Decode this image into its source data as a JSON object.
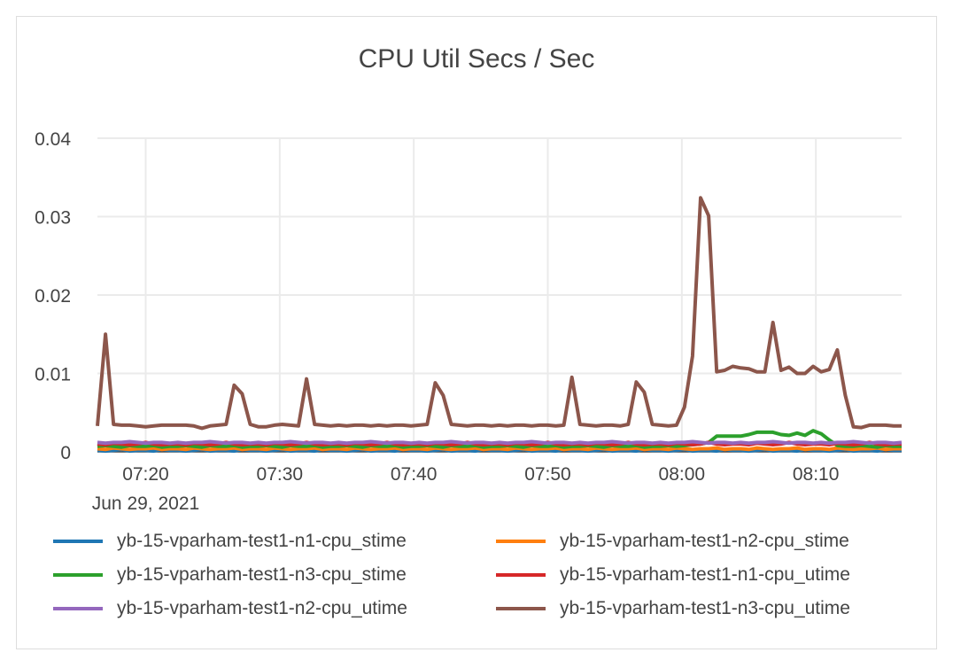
{
  "chart_data": {
    "type": "line",
    "title": "CPU Util Secs / Sec",
    "xlabel": "",
    "ylabel": "",
    "ylim": [
      0,
      0.04
    ],
    "yticks": [
      "0",
      "0.01",
      "0.02",
      "0.03",
      "0.04"
    ],
    "xlim": [
      "07:16:24",
      "08:16:24"
    ],
    "xticks": [
      {
        "t": "07:20",
        "label": "07:20",
        "sub": "Jun 29, 2021"
      },
      {
        "t": "07:30",
        "label": "07:30",
        "sub": ""
      },
      {
        "t": "07:40",
        "label": "07:40",
        "sub": ""
      },
      {
        "t": "07:50",
        "label": "07:50",
        "sub": ""
      },
      {
        "t": "08:00",
        "label": "08:00",
        "sub": ""
      },
      {
        "t": "08:10",
        "label": "08:10",
        "sub": ""
      }
    ],
    "grid": true,
    "legend_placement": "bottom-center overlapping plot",
    "x": [
      "07:16:24",
      "07:17:00",
      "07:17:36",
      "07:18:12",
      "07:18:48",
      "07:19:24",
      "07:20:00",
      "07:20:36",
      "07:21:12",
      "07:21:48",
      "07:22:24",
      "07:23:00",
      "07:23:36",
      "07:24:12",
      "07:24:48",
      "07:25:24",
      "07:26:00",
      "07:26:36",
      "07:27:12",
      "07:27:48",
      "07:28:24",
      "07:29:00",
      "07:29:36",
      "07:30:12",
      "07:30:48",
      "07:31:24",
      "07:32:00",
      "07:32:36",
      "07:33:12",
      "07:33:48",
      "07:34:24",
      "07:35:00",
      "07:35:36",
      "07:36:12",
      "07:36:48",
      "07:37:24",
      "07:38:00",
      "07:38:36",
      "07:39:12",
      "07:39:48",
      "07:40:24",
      "07:41:00",
      "07:41:36",
      "07:42:12",
      "07:42:48",
      "07:43:24",
      "07:44:00",
      "07:44:36",
      "07:45:12",
      "07:45:48",
      "07:46:24",
      "07:47:00",
      "07:47:36",
      "07:48:12",
      "07:48:48",
      "07:49:24",
      "07:50:00",
      "07:50:36",
      "07:51:12",
      "07:51:48",
      "07:52:24",
      "07:53:00",
      "07:53:36",
      "07:54:12",
      "07:54:48",
      "07:55:24",
      "07:56:00",
      "07:56:36",
      "07:57:12",
      "07:57:48",
      "07:58:24",
      "07:59:00",
      "07:59:36",
      "08:00:12",
      "08:00:48",
      "08:01:24",
      "08:02:00",
      "08:02:36",
      "08:03:12",
      "08:03:48",
      "08:04:24",
      "08:05:00",
      "08:05:36",
      "08:06:12",
      "08:06:48",
      "08:07:24",
      "08:08:00",
      "08:08:36",
      "08:09:12",
      "08:09:48",
      "08:10:24",
      "08:11:00",
      "08:11:36",
      "08:12:12",
      "08:12:48",
      "08:13:24",
      "08:14:00",
      "08:14:36",
      "08:15:12",
      "08:15:48",
      "08:16:24"
    ],
    "series": [
      {
        "name": "yb-15-vparham-test1-n1-cpu_stime",
        "color": "#1f77b4",
        "values": [
          0.0002,
          0.0001,
          0.0002,
          0.0003,
          0.0001,
          0.0002,
          0.0002,
          0.0001,
          0.0003,
          0.0002,
          0.0002,
          0.0001,
          0.0002,
          0.0003,
          0.0001,
          0.0002,
          0.0002,
          0.0001,
          0.0003,
          0.0002,
          0.0002,
          0.0001,
          0.0002,
          0.0003,
          0.0001,
          0.0002,
          0.0002,
          0.0001,
          0.0003,
          0.0002,
          0.0002,
          0.0001,
          0.0002,
          0.0003,
          0.0001,
          0.0002,
          0.0002,
          0.0001,
          0.0003,
          0.0002,
          0.0002,
          0.0001,
          0.0002,
          0.0003,
          0.0001,
          0.0002,
          0.0002,
          0.0001,
          0.0003,
          0.0002,
          0.0002,
          0.0001,
          0.0002,
          0.0003,
          0.0001,
          0.0002,
          0.0002,
          0.0001,
          0.0003,
          0.0002,
          0.0002,
          0.0001,
          0.0002,
          0.0003,
          0.0001,
          0.0002,
          0.0002,
          0.0001,
          0.0003,
          0.0002,
          0.0002,
          0.0001,
          0.0002,
          0.0003,
          0.0001,
          0.0002,
          0.0002,
          0.0001,
          0.0003,
          0.0002,
          0.0002,
          0.0001,
          0.0002,
          0.0003,
          0.0001,
          0.0002,
          0.0002,
          0.0001,
          0.0003,
          0.0002,
          0.0002,
          0.0001,
          0.0002,
          0.0003,
          0.0001,
          0.0002,
          0.0002,
          0.0001,
          0.0003,
          0.0002,
          0.0002
        ]
      },
      {
        "name": "yb-15-vparham-test1-n2-cpu_stime",
        "color": "#ff7f0e",
        "values": [
          0.0004,
          0.0003,
          0.0005,
          0.0004,
          0.0003,
          0.0004,
          0.0004,
          0.0005,
          0.0003,
          0.0004,
          0.0004,
          0.0003,
          0.0005,
          0.0004,
          0.0003,
          0.0004,
          0.0004,
          0.0005,
          0.0003,
          0.0004,
          0.0004,
          0.0003,
          0.0005,
          0.0004,
          0.0003,
          0.0004,
          0.0004,
          0.0005,
          0.0003,
          0.0004,
          0.0004,
          0.0003,
          0.0005,
          0.0004,
          0.0003,
          0.0004,
          0.0004,
          0.0005,
          0.0003,
          0.0004,
          0.0004,
          0.0003,
          0.0005,
          0.0004,
          0.0003,
          0.0004,
          0.0004,
          0.0005,
          0.0003,
          0.0004,
          0.0004,
          0.0003,
          0.0005,
          0.0004,
          0.0003,
          0.0004,
          0.0004,
          0.0005,
          0.0003,
          0.0004,
          0.0004,
          0.0003,
          0.0005,
          0.0004,
          0.0003,
          0.0004,
          0.0004,
          0.0005,
          0.0003,
          0.0004,
          0.0004,
          0.0003,
          0.0005,
          0.0004,
          0.0003,
          0.0004,
          0.0004,
          0.0005,
          0.0003,
          0.0004,
          0.0004,
          0.0003,
          0.0005,
          0.0004,
          0.0003,
          0.0004,
          0.0004,
          0.0005,
          0.0003,
          0.0004,
          0.0004,
          0.0003,
          0.0005,
          0.0004,
          0.0003,
          0.0004,
          0.0004,
          0.0005,
          0.0003,
          0.0004,
          0.0004
        ]
      },
      {
        "name": "yb-15-vparham-test1-n3-cpu_stime",
        "color": "#2ca02c",
        "values": [
          0.0007,
          0.0008,
          0.0007,
          0.0006,
          0.0008,
          0.0007,
          0.0007,
          0.0008,
          0.0006,
          0.0007,
          0.0007,
          0.0008,
          0.0007,
          0.0006,
          0.0008,
          0.0007,
          0.0007,
          0.0008,
          0.0006,
          0.0007,
          0.0007,
          0.0008,
          0.0007,
          0.0006,
          0.0008,
          0.0007,
          0.0007,
          0.0008,
          0.0006,
          0.0007,
          0.0007,
          0.0008,
          0.0007,
          0.0006,
          0.0008,
          0.0007,
          0.0007,
          0.0008,
          0.0006,
          0.0007,
          0.0007,
          0.0008,
          0.0007,
          0.0006,
          0.0008,
          0.0007,
          0.0007,
          0.0008,
          0.0006,
          0.0007,
          0.0007,
          0.0008,
          0.0007,
          0.0006,
          0.0008,
          0.0007,
          0.0007,
          0.0008,
          0.0006,
          0.0007,
          0.0007,
          0.0008,
          0.0007,
          0.0006,
          0.0008,
          0.0007,
          0.0007,
          0.0008,
          0.0006,
          0.0007,
          0.0007,
          0.0008,
          0.0007,
          0.0008,
          0.0009,
          0.001,
          0.0012,
          0.002,
          0.002,
          0.002,
          0.002,
          0.0022,
          0.0025,
          0.0025,
          0.0025,
          0.0022,
          0.0021,
          0.0024,
          0.0021,
          0.0027,
          0.0023,
          0.0015,
          0.0008,
          0.0007,
          0.0007,
          0.0008,
          0.0007,
          0.0006,
          0.0008,
          0.0007,
          0.0007
        ]
      },
      {
        "name": "yb-15-vparham-test1-n1-cpu_utime",
        "color": "#d62728",
        "values": [
          0.001,
          0.0009,
          0.0011,
          0.001,
          0.0009,
          0.001,
          0.0012,
          0.001,
          0.0009,
          0.001,
          0.001,
          0.0009,
          0.0011,
          0.001,
          0.0009,
          0.001,
          0.0012,
          0.001,
          0.0009,
          0.001,
          0.001,
          0.0009,
          0.0011,
          0.001,
          0.0009,
          0.001,
          0.0012,
          0.001,
          0.0009,
          0.001,
          0.001,
          0.0009,
          0.0011,
          0.001,
          0.0009,
          0.001,
          0.0012,
          0.001,
          0.0009,
          0.001,
          0.001,
          0.0009,
          0.0011,
          0.001,
          0.0009,
          0.001,
          0.0012,
          0.001,
          0.0009,
          0.001,
          0.001,
          0.0009,
          0.0011,
          0.001,
          0.0009,
          0.001,
          0.0012,
          0.001,
          0.0009,
          0.001,
          0.001,
          0.0009,
          0.0011,
          0.001,
          0.0009,
          0.001,
          0.0012,
          0.001,
          0.0009,
          0.001,
          0.001,
          0.0009,
          0.0011,
          0.001,
          0.0009,
          0.001,
          0.0012,
          0.001,
          0.0009,
          0.001,
          0.001,
          0.0009,
          0.0011,
          0.001,
          0.0009,
          0.001,
          0.0012,
          0.001,
          0.0009,
          0.001,
          0.001,
          0.0009,
          0.0011,
          0.001,
          0.0009,
          0.001,
          0.0012,
          0.001,
          0.0009,
          0.001,
          0.001
        ]
      },
      {
        "name": "yb-15-vparham-test1-n2-cpu_utime",
        "color": "#9467bd",
        "values": [
          0.0012,
          0.0011,
          0.0012,
          0.0012,
          0.0013,
          0.0012,
          0.0011,
          0.0012,
          0.0012,
          0.0011,
          0.0012,
          0.0011,
          0.0012,
          0.0012,
          0.0013,
          0.0012,
          0.0011,
          0.0012,
          0.0012,
          0.0011,
          0.0012,
          0.0011,
          0.0012,
          0.0012,
          0.0013,
          0.0012,
          0.0011,
          0.0012,
          0.0012,
          0.0011,
          0.0012,
          0.0011,
          0.0012,
          0.0012,
          0.0013,
          0.0012,
          0.0011,
          0.0012,
          0.0012,
          0.0011,
          0.0012,
          0.0011,
          0.0012,
          0.0012,
          0.0013,
          0.0012,
          0.0011,
          0.0012,
          0.0012,
          0.0011,
          0.0012,
          0.0011,
          0.0012,
          0.0012,
          0.0013,
          0.0012,
          0.0011,
          0.0012,
          0.0012,
          0.0011,
          0.0012,
          0.0011,
          0.0012,
          0.0012,
          0.0013,
          0.0012,
          0.0011,
          0.0012,
          0.0012,
          0.0011,
          0.0012,
          0.0011,
          0.0012,
          0.0012,
          0.0013,
          0.0012,
          0.0011,
          0.0012,
          0.0012,
          0.0011,
          0.0012,
          0.0011,
          0.0012,
          0.0012,
          0.0013,
          0.0012,
          0.0011,
          0.0012,
          0.0012,
          0.0011,
          0.0012,
          0.0011,
          0.0012,
          0.0012,
          0.0013,
          0.0012,
          0.0011,
          0.0012,
          0.0012,
          0.0011,
          0.0012
        ]
      },
      {
        "name": "yb-15-vparham-test1-n3-cpu_utime",
        "color": "#8c564b",
        "values": [
          0.0033,
          0.015,
          0.0035,
          0.0034,
          0.0034,
          0.0033,
          0.0032,
          0.0033,
          0.0034,
          0.0034,
          0.0034,
          0.0034,
          0.0033,
          0.003,
          0.0033,
          0.0034,
          0.0035,
          0.0085,
          0.0074,
          0.0035,
          0.0032,
          0.0032,
          0.0034,
          0.0035,
          0.0034,
          0.0033,
          0.0093,
          0.0035,
          0.0034,
          0.0033,
          0.0034,
          0.0033,
          0.0034,
          0.0034,
          0.0033,
          0.0034,
          0.0033,
          0.0034,
          0.0034,
          0.0033,
          0.0034,
          0.0035,
          0.0088,
          0.0072,
          0.0035,
          0.0034,
          0.0033,
          0.0034,
          0.0034,
          0.0033,
          0.0034,
          0.0033,
          0.0034,
          0.0034,
          0.0033,
          0.0034,
          0.0034,
          0.0033,
          0.0034,
          0.0095,
          0.0035,
          0.0034,
          0.0033,
          0.0034,
          0.0034,
          0.0033,
          0.0035,
          0.0089,
          0.0076,
          0.0035,
          0.0034,
          0.0033,
          0.0034,
          0.0057,
          0.0122,
          0.0324,
          0.0301,
          0.0102,
          0.0104,
          0.0109,
          0.0107,
          0.0106,
          0.0102,
          0.0102,
          0.0165,
          0.0104,
          0.0108,
          0.01,
          0.01,
          0.0109,
          0.0102,
          0.0105,
          0.013,
          0.0072,
          0.0032,
          0.0031,
          0.0034,
          0.0034,
          0.0034,
          0.0033,
          0.0033
        ]
      }
    ]
  }
}
